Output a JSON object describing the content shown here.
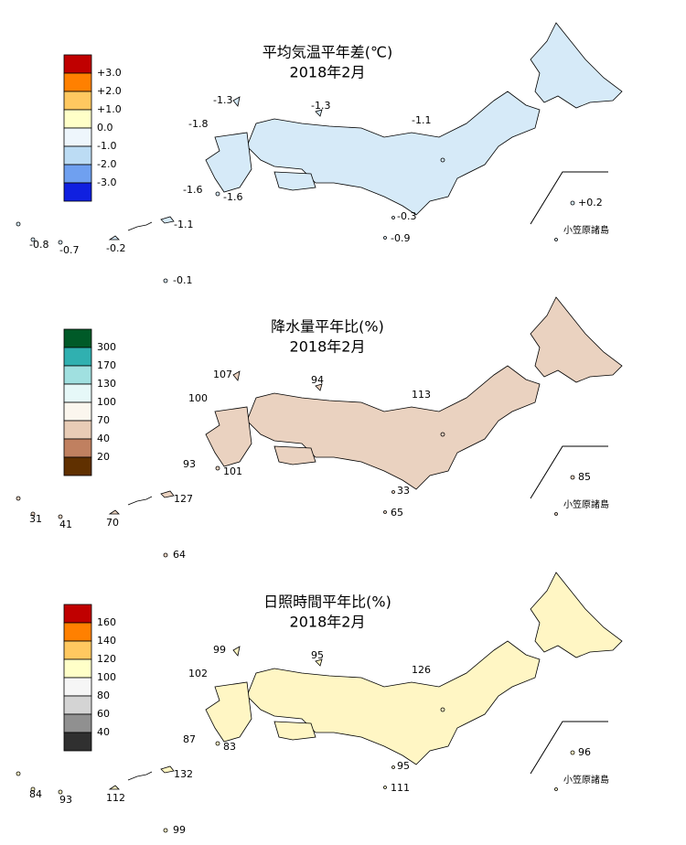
{
  "panels": [
    {
      "title": "平均気温平年差(℃)",
      "subtitle": "2018年2月",
      "legend": {
        "labels": [
          "+3.0",
          "+2.0",
          "+1.0",
          "0.0",
          "-1.0",
          "-2.0",
          "-3.0"
        ],
        "colors": [
          "#c00000",
          "#ff8000",
          "#ffc860",
          "#ffffc8",
          "#eef6fc",
          "#bcdcf4",
          "#6fa0f0",
          "#1020e0"
        ]
      },
      "map_color": "#d6eaf8",
      "stations": [
        "-1.3",
        "-1.3",
        "-1.8",
        "-1.1",
        "-1.6",
        "-1.6",
        "+0.2",
        "-0.3",
        "-0.9",
        "-1.1",
        "-0.8",
        "-0.7",
        "-0.2",
        "-0.1"
      ],
      "inset_label": "小笠原諸島"
    },
    {
      "title": "降水量平年比(%)",
      "subtitle": "2018年2月",
      "legend": {
        "labels": [
          "300",
          "170",
          "130",
          "100",
          "70",
          "40",
          "20"
        ],
        "colors": [
          "#005a28",
          "#30b0b0",
          "#a0e0e0",
          "#e6f8f8",
          "#fbf6ee",
          "#e8ccb6",
          "#c08060",
          "#603000"
        ]
      },
      "map_color": "#ead2c0",
      "stations": [
        "107",
        "94",
        "100",
        "113",
        "93",
        "101",
        "85",
        "33",
        "65",
        "127",
        "31",
        "41",
        "70",
        "64"
      ],
      "inset_label": "小笠原諸島"
    },
    {
      "title": "日照時間平年比(%)",
      "subtitle": "2018年2月",
      "legend": {
        "labels": [
          "160",
          "140",
          "120",
          "100",
          "80",
          "60",
          "40"
        ],
        "colors": [
          "#c00000",
          "#ff8000",
          "#ffc860",
          "#ffffc8",
          "#f6f6f6",
          "#d4d4d4",
          "#909090",
          "#303030"
        ]
      },
      "map_color": "#fff6c4",
      "stations": [
        "99",
        "95",
        "102",
        "126",
        "87",
        "83",
        "96",
        "95",
        "111",
        "132",
        "84",
        "93",
        "112",
        "99"
      ],
      "inset_label": "小笠原諸島"
    }
  ]
}
